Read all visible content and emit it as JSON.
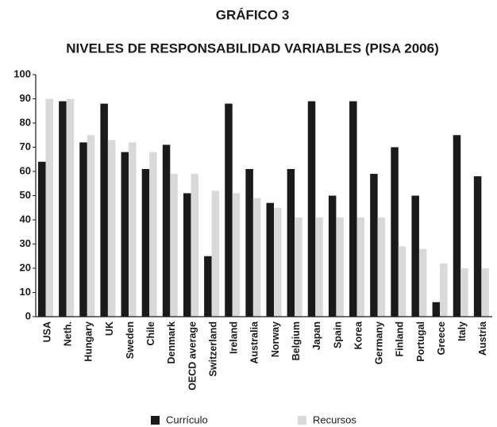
{
  "chart_data": {
    "type": "bar",
    "title": "GRÁFICO 3",
    "subtitle": "NIVELES DE RESPONSABILIDAD VARIABLES (PISA 2006)",
    "categories": [
      "USA",
      "Neth.",
      "Hungary",
      "UK",
      "Sweden",
      "Chile",
      "Denmark",
      "OECD average",
      "Switzerland",
      "Ireland",
      "Australia",
      "Norway",
      "Belgium",
      "Japan",
      "Spain",
      "Korea",
      "Germany",
      "Finland",
      "Portugal",
      "Greece",
      "Italy",
      "Austria"
    ],
    "series": [
      {
        "name": "Currículo",
        "color": "#1a1a1a",
        "values": [
          64,
          89,
          72,
          88,
          68,
          61,
          71,
          51,
          25,
          88,
          61,
          47,
          61,
          89,
          50,
          89,
          59,
          70,
          50,
          6,
          75,
          58
        ]
      },
      {
        "name": "Recursos",
        "color": "#d9d9d9",
        "values": [
          90,
          90,
          75,
          73,
          72,
          68,
          59,
          59,
          52,
          51,
          49,
          45,
          41,
          41,
          41,
          41,
          41,
          29,
          28,
          22,
          20,
          20
        ]
      }
    ],
    "ylim": [
      0,
      100
    ],
    "yticks": [
      0,
      10,
      20,
      30,
      40,
      50,
      60,
      70,
      80,
      90,
      100
    ],
    "grid": false
  }
}
